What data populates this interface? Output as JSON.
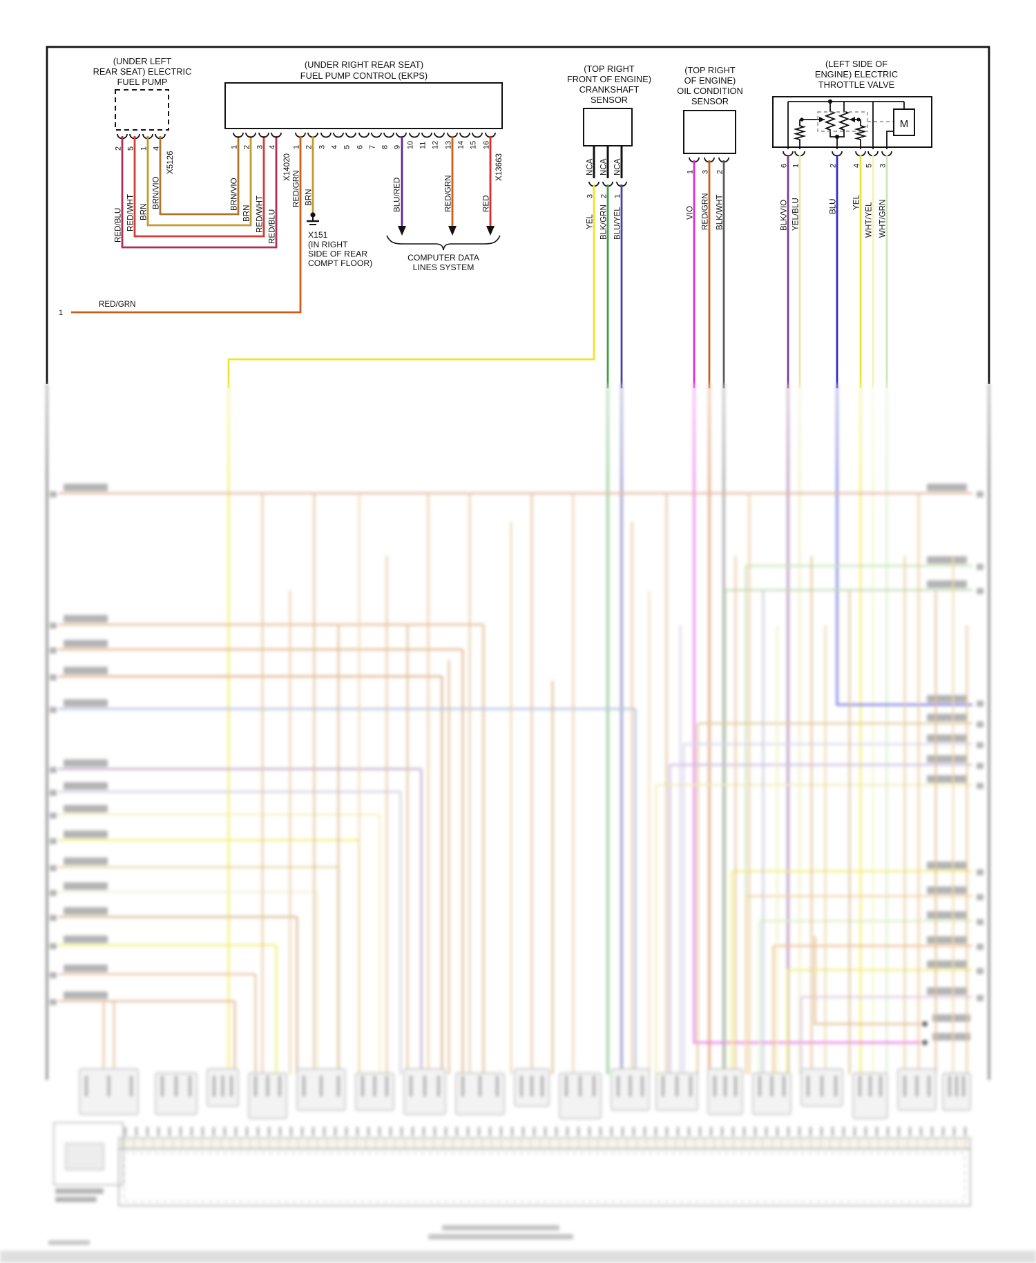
{
  "fuel_pump": {
    "title_lines": [
      "(UNDER LEFT",
      "REAR SEAT) ELECTRIC",
      "FUEL PUMP"
    ],
    "connector": "X5126",
    "pins": [
      {
        "num": "2",
        "wire": "RED/BLU"
      },
      {
        "num": "5",
        "wire": "RED/WHT"
      },
      {
        "num": "1",
        "wire": "BRN"
      },
      {
        "num": "4",
        "wire": "BRN/VIO"
      }
    ]
  },
  "ekps": {
    "title_lines": [
      "(UNDER RIGHT REAR SEAT)",
      "FUEL PUMP CONTROL (EKPS)"
    ],
    "connector_a": "X14020",
    "pins_a": [
      {
        "num": "1",
        "wire": "BRN/VIO"
      },
      {
        "num": "2",
        "wire": "BRN"
      },
      {
        "num": "3",
        "wire": "RED/WHT"
      },
      {
        "num": "4",
        "wire": "RED/BLU"
      }
    ],
    "connector_b": "X13663",
    "pins_b": [
      {
        "num": "1",
        "wire": "RED/GRN"
      },
      {
        "num": "2",
        "wire": "BRN"
      },
      {
        "num": "3"
      },
      {
        "num": "4"
      },
      {
        "num": "5"
      },
      {
        "num": "6"
      },
      {
        "num": "7"
      },
      {
        "num": "8"
      },
      {
        "num": "9",
        "wire": "BLU/RED"
      },
      {
        "num": "10"
      },
      {
        "num": "11"
      },
      {
        "num": "12"
      },
      {
        "num": "13",
        "wire": "RED/GRN"
      },
      {
        "num": "14"
      },
      {
        "num": "15"
      },
      {
        "num": "16",
        "wire": "RED"
      }
    ]
  },
  "ground": {
    "label": "X151",
    "location_lines": [
      "(IN RIGHT",
      "SIDE OF REAR",
      "COMPT FLOOR)"
    ]
  },
  "data_lines_label": [
    "COMPUTER DATA",
    "LINES SYSTEM"
  ],
  "left_stub": {
    "num": "1",
    "wire": "RED/GRN"
  },
  "crankshaft": {
    "title_lines": [
      "(TOP RIGHT",
      "FRONT OF ENGINE)",
      "CRANKSHAFT",
      "SENSOR"
    ],
    "pins": [
      {
        "num": "3",
        "inner": "NCA",
        "wire": "YEL"
      },
      {
        "num": "2",
        "inner": "NCA",
        "wire": "BLK/GRN"
      },
      {
        "num": "1",
        "inner": "NCA",
        "wire": "BLU/YEL"
      }
    ]
  },
  "oil_sensor": {
    "title_lines": [
      "(TOP RIGHT",
      "OF ENGINE)",
      "OIL CONDITION",
      "SENSOR"
    ],
    "pins": [
      {
        "num": "1",
        "wire": "VIO"
      },
      {
        "num": "3",
        "wire": "RED/GRN"
      },
      {
        "num": "2",
        "wire": "BLK/WHT"
      }
    ]
  },
  "throttle": {
    "title_lines": [
      "(LEFT SIDE OF",
      "ENGINE) ELECTRIC",
      "THROTTLE VALVE"
    ],
    "motor_label": "M",
    "pins": [
      {
        "num": "6",
        "wire": "BLK/VIO"
      },
      {
        "num": "1",
        "wire": "YEL/BLU"
      },
      {
        "num": "2",
        "wire": "BLU"
      },
      {
        "num": "4",
        "wire": "YEL"
      },
      {
        "num": "5",
        "wire": "WHT/YEL"
      },
      {
        "num": "3",
        "wire": "WHT/GRN"
      }
    ]
  },
  "wire_colors": {
    "RED/BLU": "#b42a5c",
    "RED/WHT": "#d63b35",
    "BRN": "#c49a28",
    "BRN/VIO": "#b2742c",
    "RED/GRN": "#cc5e14",
    "BLU/RED": "#5b23a0",
    "RED": "#dd2b22",
    "YEL": "#f0e428",
    "BLK/GRN": "#3f9e3f",
    "BLU/YEL": "#43409e",
    "VIO": "#e02cd8",
    "BLK/WHT": "#5a5a5a",
    "BLK/VIO": "#7c3d86",
    "YEL/BLU": "#e6e8a8",
    "BLU": "#2b2bd0",
    "WHT/YEL": "#f2f2b4",
    "WHT/GRN": "#cde6b8",
    "BLK": "#111111"
  }
}
